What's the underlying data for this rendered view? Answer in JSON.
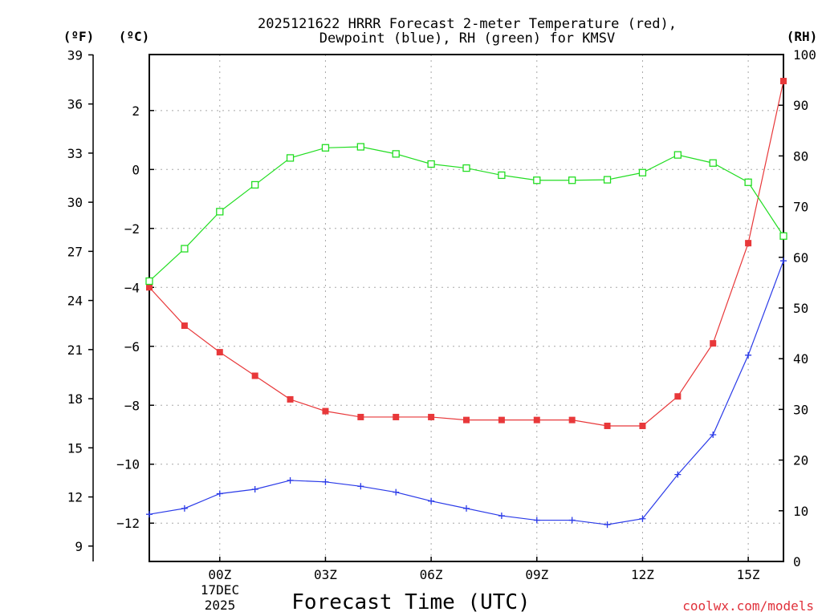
{
  "chart_data": {
    "type": "line",
    "title_line1": "2025121622 HRRR Forecast 2-meter Temperature (red),",
    "title_line2": "Dewpoint (blue), RH (green) for KMSV",
    "xlabel": "Forecast Time (UTC)",
    "credit": "coolwx.com/models",
    "left_outer_unit": "(ºF)",
    "left_inner_unit": "(ºC)",
    "right_unit": "(RH)",
    "date_label": [
      "17DEC",
      "2025"
    ],
    "x_hours": [
      -2,
      -1,
      0,
      1,
      2,
      3,
      4,
      5,
      6,
      7,
      8,
      9,
      10,
      11,
      12,
      13,
      14,
      15,
      16
    ],
    "x_range": [
      -2,
      16
    ],
    "x_ticks": [
      {
        "hour": 0,
        "label": "00Z"
      },
      {
        "hour": 3,
        "label": "03Z"
      },
      {
        "hour": 6,
        "label": "06Z"
      },
      {
        "hour": 9,
        "label": "09Z"
      },
      {
        "hour": 12,
        "label": "12Z"
      },
      {
        "hour": 15,
        "label": "15Z"
      }
    ],
    "celsius_range": [
      -13.3,
      3.9
    ],
    "celsius_ticks": [
      "-12",
      "-10",
      "-8",
      "-6",
      "-4",
      "-2",
      "0",
      "2"
    ],
    "fahrenheit_ticks": [
      "9",
      "12",
      "15",
      "18",
      "21",
      "24",
      "27",
      "30",
      "33",
      "36",
      "39"
    ],
    "rh_range": [
      0,
      100
    ],
    "rh_ticks": [
      "0",
      "10",
      "20",
      "30",
      "40",
      "50",
      "60",
      "70",
      "80",
      "90",
      "100"
    ],
    "series": [
      {
        "name": "Temperature",
        "axis": "celsius",
        "color": "#e8383a",
        "marker": "filled-square",
        "values": [
          -4.0,
          -5.3,
          -6.2,
          -7.0,
          -7.8,
          -8.2,
          -8.4,
          -8.4,
          -8.4,
          -8.5,
          -8.5,
          -8.5,
          -8.5,
          -8.7,
          -8.7,
          -7.7,
          -5.9,
          -2.5,
          3.0
        ]
      },
      {
        "name": "Dewpoint",
        "axis": "celsius",
        "color": "#2a3ae8",
        "marker": "plus",
        "values": [
          -11.7,
          -11.5,
          -11.0,
          -10.85,
          -10.55,
          -10.6,
          -10.75,
          -10.95,
          -11.25,
          -11.5,
          -11.75,
          -11.9,
          -11.9,
          -12.05,
          -11.85,
          -10.35,
          -9.0,
          -6.3,
          -3.1
        ]
      },
      {
        "name": "RH",
        "axis": "rh",
        "color": "#22dd22",
        "marker": "open-square",
        "values": [
          55.3,
          61.7,
          69.0,
          74.3,
          79.6,
          81.6,
          81.8,
          80.4,
          78.4,
          77.6,
          76.2,
          75.2,
          75.2,
          75.3,
          76.7,
          80.2,
          78.6,
          74.8,
          64.2
        ]
      }
    ]
  }
}
